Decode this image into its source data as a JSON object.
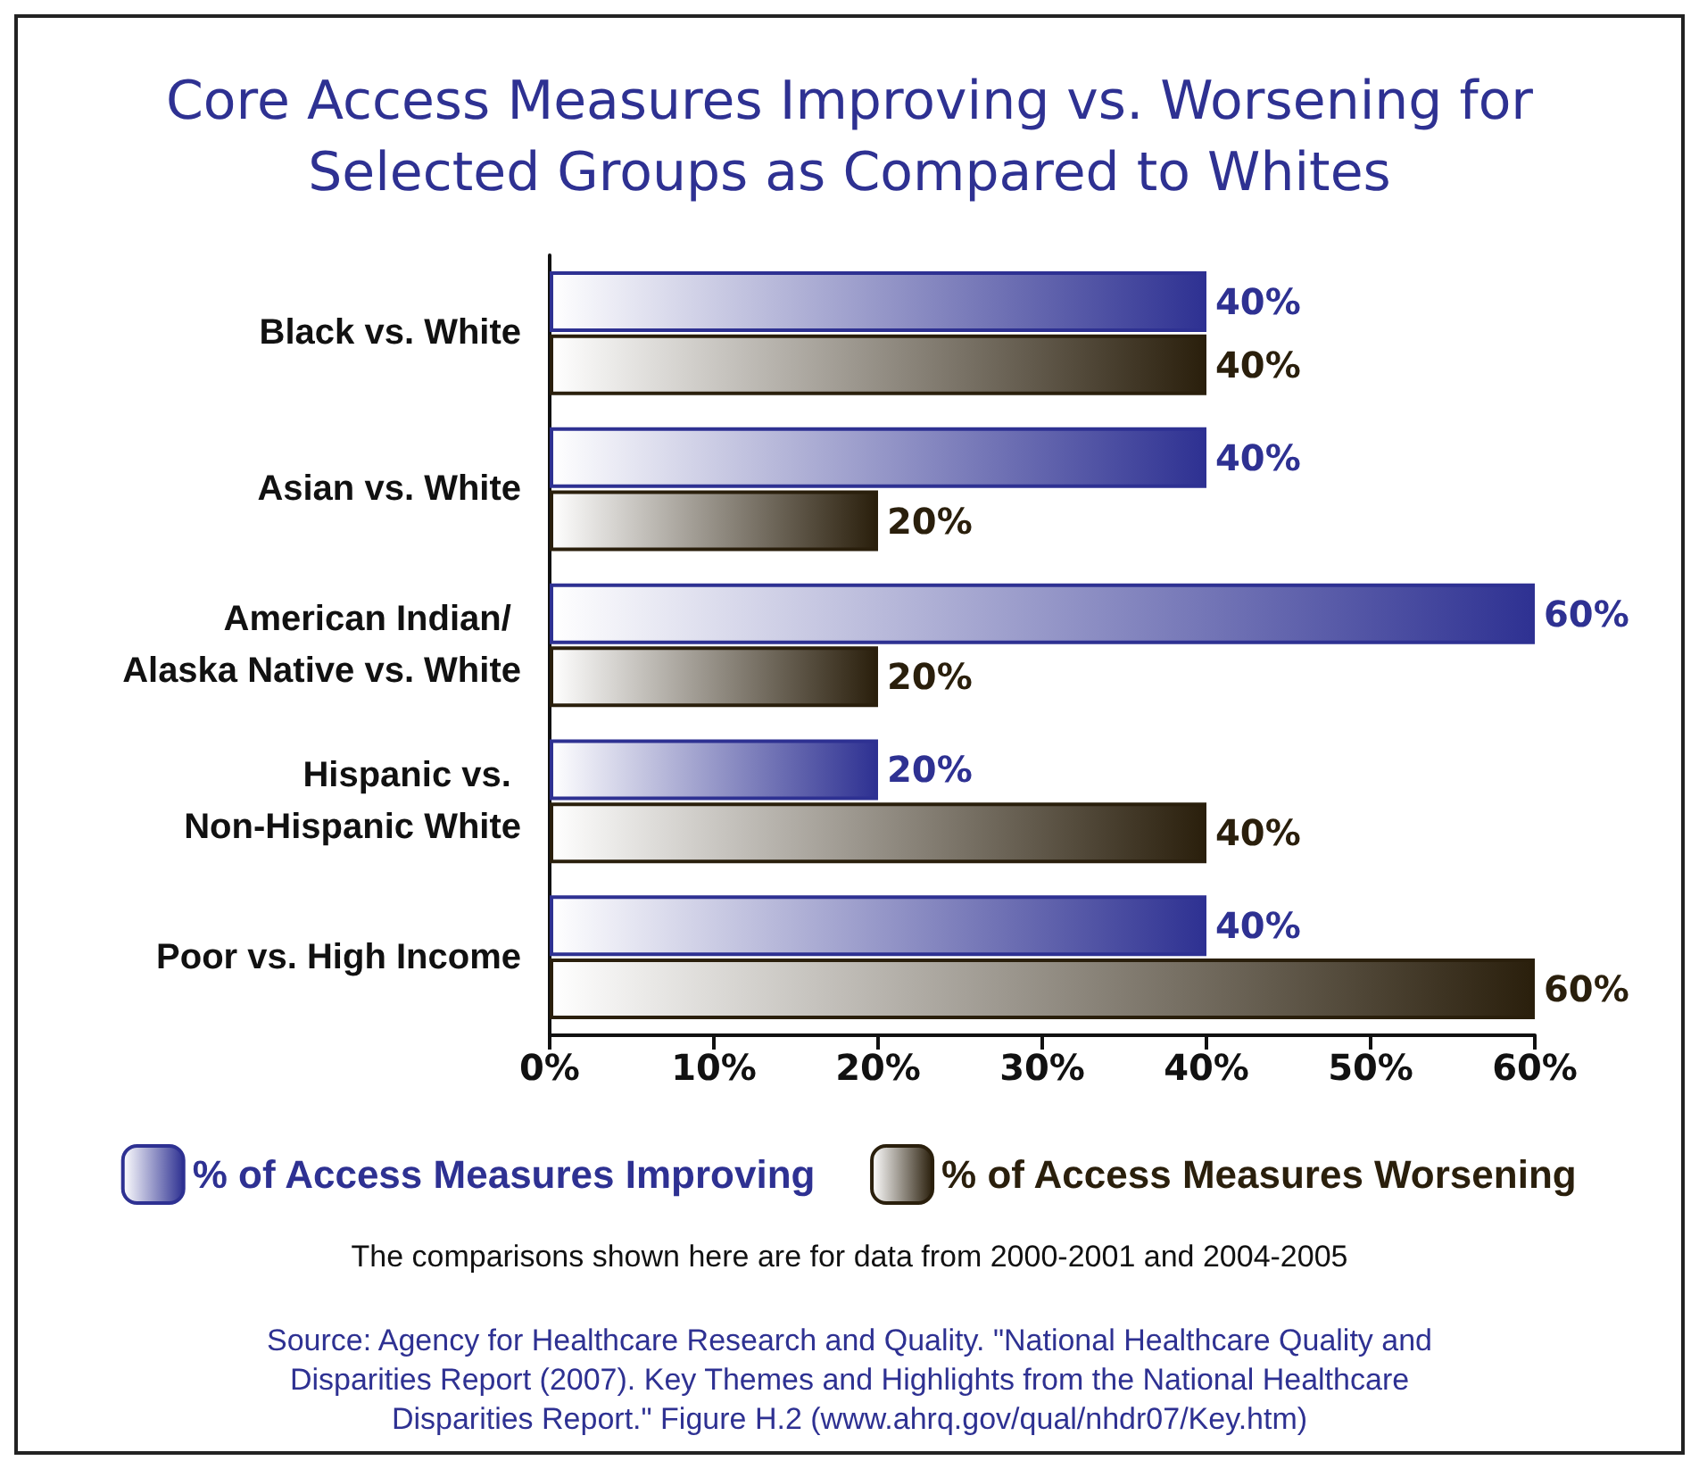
{
  "chart_data": {
    "type": "bar",
    "orientation": "horizontal",
    "title": "Core Access Measures Improving vs. Worsening for\nSelected Groups as Compared to Whites",
    "categories": [
      "Black vs. White",
      "Asian vs. White",
      "American Indian/ Alaska Native vs. White",
      "Hispanic vs. Non-Hispanic White",
      "Poor vs. High Income"
    ],
    "series": [
      {
        "name": "% of Access Measures Improving",
        "color": "#2e3192",
        "values": [
          40,
          40,
          60,
          20,
          40
        ],
        "value_labels": [
          "40%",
          "40%",
          "60%",
          "20%",
          "40%"
        ]
      },
      {
        "name": "% of Access Measures Worsening",
        "color": "#2a1f0c",
        "values": [
          40,
          20,
          20,
          40,
          60
        ],
        "value_labels": [
          "40%",
          "20%",
          "20%",
          "40%",
          "60%"
        ]
      }
    ],
    "xlim": [
      0,
      60
    ],
    "xticks": [
      {
        "value": 0,
        "label": "0%"
      },
      {
        "value": 10,
        "label": "10%"
      },
      {
        "value": 20,
        "label": "20%"
      },
      {
        "value": 30,
        "label": "30%"
      },
      {
        "value": 40,
        "label": "40%"
      },
      {
        "value": 50,
        "label": "50%"
      },
      {
        "value": 60,
        "label": "60%"
      }
    ],
    "grid": false,
    "legend": "bottom",
    "annotations": [
      "The comparisons shown here are for data from 2000-2001 and 2004-2005",
      "Source: Agency for Healthcare Research and Quality. \"National Healthcare Quality and Disparities Report (2007). Key Themes and Highlights from the National Healthcare Disparities Report.\" Figure H.2 (www.ahrq.gov/qual/nhdr07/Key.htm)"
    ]
  }
}
